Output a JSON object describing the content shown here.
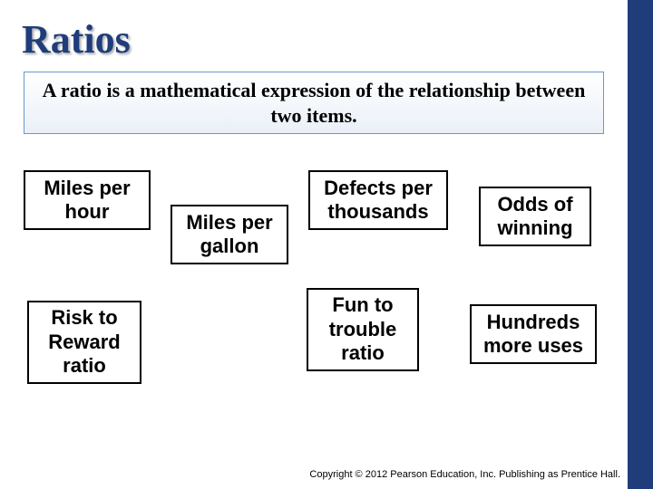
{
  "colors": {
    "accent": "#1f3d7a",
    "box_border": "#000000",
    "def_border": "#6699cc",
    "background": "#ffffff"
  },
  "title": "Ratios",
  "definition": "A ratio is a mathematical expression of the relationship between two items.",
  "examples": {
    "b1": "Miles per hour",
    "b2": "Miles per gallon",
    "b3": "Defects per thousands",
    "b4": "Odds of winning",
    "b5": "Risk to Reward ratio",
    "b6": "Fun to trouble ratio",
    "b7": "Hundreds more uses"
  },
  "copyright": "Copyright © 2012 Pearson Education, Inc. Publishing as Prentice Hall."
}
